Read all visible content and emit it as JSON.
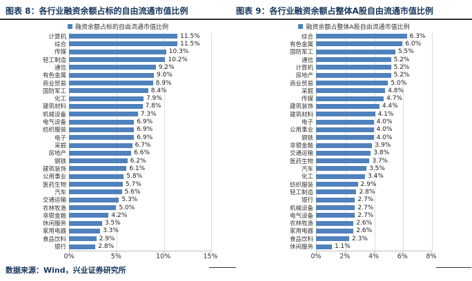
{
  "header": {
    "left_title": "图表 8：各行业融资余额占标的自由流通市值比例",
    "right_title": "图表 9：各行业融资余额占整体A股自由流通市值比例"
  },
  "footer": {
    "source_note": "数据来源：Wind，兴业证券研究所"
  },
  "colors": {
    "bar": "#4f81bd",
    "title_text": "#17365d",
    "gridline": "#dcdcdc",
    "axis": "#bfbfbf",
    "rule": "#2e2e2e"
  },
  "chart_data": [
    {
      "type": "bar",
      "orientation": "horizontal",
      "title": "图表 8：各行业融资余额占标的自由流通市值比例",
      "legend": "融资余额占标的自由流通市值比例",
      "categories": [
        "计算机",
        "综合",
        "传媒",
        "轻工制造",
        "通信",
        "有色金属",
        "商业贸易",
        "国防军工",
        "化工",
        "建筑材料",
        "机械设备",
        "电气设备",
        "纺织服装",
        "电子",
        "采掘",
        "房地产",
        "钢铁",
        "建筑装饰",
        "公用事业",
        "医药生物",
        "汽车",
        "交通运输",
        "农林牧渔",
        "非银金融",
        "休闲服务",
        "家用电器",
        "食品饮料",
        "银行"
      ],
      "values": [
        11.5,
        11.5,
        10.3,
        10.2,
        9.2,
        9.0,
        8.9,
        8.4,
        7.9,
        7.8,
        7.3,
        6.9,
        6.9,
        6.9,
        6.7,
        6.6,
        6.2,
        6.1,
        5.8,
        5.7,
        5.6,
        5.3,
        5.0,
        4.2,
        3.5,
        3.3,
        2.9,
        2.8
      ],
      "value_labels": [
        "11.5%",
        "11.5%",
        "10.3%",
        "10.2%",
        "9.2%",
        "9.0%",
        "8.9%",
        "8.4%",
        "7.9%",
        "7.8%",
        "7.3%",
        "6.9%",
        "6.9%",
        "6.9%",
        "6.7%",
        "6.6%",
        "6.2%",
        "6.1%",
        "5.8%",
        "5.7%",
        "5.6%",
        "5.3%",
        "5.0%",
        "4.2%",
        "3.5%",
        "3.3%",
        "2.9%",
        "2.8%"
      ],
      "xlim": [
        0,
        15
      ],
      "xticks": [
        "0%",
        "5%",
        "10%",
        "15%"
      ],
      "grid": true,
      "legend_position": "top"
    },
    {
      "type": "bar",
      "orientation": "horizontal",
      "title": "图表 9：各行业融资余额占整体A股自由流通市值比例",
      "legend": "融资余额占整体A股自由流通市值比例",
      "categories": [
        "综合",
        "有色金属",
        "国防军工",
        "通信",
        "计算机",
        "房地产",
        "商业贸易",
        "采掘",
        "传媒",
        "建筑装饰",
        "建筑材料",
        "电子",
        "公用事业",
        "钢铁",
        "非银金融",
        "交通运输",
        "医药生物",
        "汽车",
        "化工",
        "纺织服装",
        "轻工制造",
        "银行",
        "机械设备",
        "电气设备",
        "农林牧渔",
        "家用电器",
        "食品饮料",
        "休闲服务"
      ],
      "values": [
        6.3,
        6.0,
        5.5,
        5.2,
        5.2,
        5.2,
        5.0,
        4.8,
        4.7,
        4.4,
        4.1,
        4.0,
        4.0,
        4.0,
        3.9,
        3.8,
        3.7,
        3.5,
        3.4,
        2.9,
        2.8,
        2.7,
        2.7,
        2.7,
        2.6,
        2.6,
        2.3,
        1.1
      ],
      "value_labels": [
        "6.3%",
        "6.0%",
        "5.5%",
        "5.2%",
        "5.2%",
        "5.2%",
        "5.0%",
        "4.8%",
        "4.7%",
        "4.4%",
        "4.1%",
        "4.0%",
        "4.0%",
        "4.0%",
        "3.9%",
        "3.8%",
        "3.7%",
        "3.5%",
        "3.4%",
        "2.9%",
        "2.8%",
        "2.7%",
        "2.7%",
        "2.7%",
        "2.6%",
        "2.6%",
        "2.3%",
        "1.1%"
      ],
      "xlim": [
        0,
        8
      ],
      "xticks": [
        "0%",
        "2%",
        "4%",
        "6%",
        "8%"
      ],
      "grid": true,
      "legend_position": "top"
    }
  ]
}
